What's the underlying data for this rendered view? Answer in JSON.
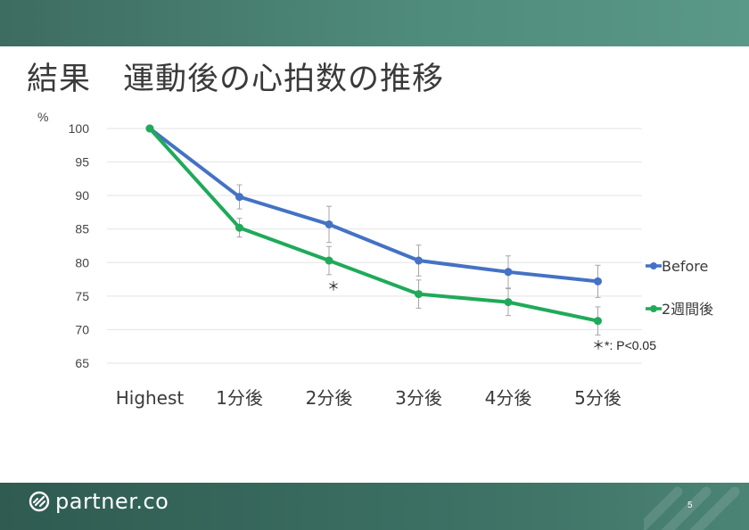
{
  "slide": {
    "title": "結果　運動後の心拍数の推移",
    "brand": "partner.co",
    "page_number": "5",
    "top_band_color": "#4f8b7a",
    "bottom_band_color": "#3f7467"
  },
  "chart_data": {
    "type": "line",
    "ylabel": "%",
    "ylim": [
      65,
      100
    ],
    "yticks": [
      100,
      95,
      90,
      85,
      80,
      75,
      70,
      65
    ],
    "grid": true,
    "legend_position": "right",
    "categories": [
      "Highest",
      "1分後",
      "2分後",
      "3分後",
      "4分後",
      "5分後"
    ],
    "series": [
      {
        "name": "Before",
        "color": "#4472c4",
        "values": [
          100,
          89.8,
          85.7,
          80.3,
          78.6,
          77.2
        ],
        "errors": [
          0,
          1.8,
          2.7,
          2.3,
          2.4,
          2.4
        ]
      },
      {
        "name": "2週間後",
        "color": "#1faa59",
        "values": [
          100,
          85.2,
          80.3,
          75.3,
          74.1,
          71.3
        ],
        "errors": [
          0,
          1.4,
          2.1,
          2.1,
          2.0,
          2.1
        ]
      }
    ],
    "annotations": [
      {
        "text": "＊",
        "category_index": 2,
        "anchor_value": 80.3
      }
    ],
    "footnote": "＊*: P<0.05"
  }
}
